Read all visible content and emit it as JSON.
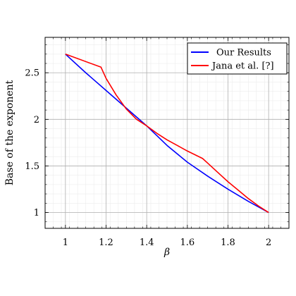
{
  "chart_data": {
    "type": "line",
    "xlabel": "β",
    "ylabel": "Base of the exponent",
    "xlim": [
      0.9,
      2.1
    ],
    "ylim": [
      0.83,
      2.88
    ],
    "xticks": [
      1,
      1.2,
      1.4,
      1.6,
      1.8,
      2
    ],
    "xtick_labels": [
      "1",
      "1.2",
      "1.4",
      "1.6",
      "1.8",
      "2"
    ],
    "yticks": [
      1,
      1.5,
      2,
      2.5
    ],
    "ytick_labels": [
      "1",
      "1.5",
      "2",
      "2.5"
    ],
    "major_grid": true,
    "minor_grid": true,
    "legend_position": "top-right",
    "series": [
      {
        "name": "Our Results",
        "color": "#0000ff",
        "x": [
          1.0,
          1.1,
          1.2,
          1.3,
          1.4,
          1.5,
          1.6,
          1.7,
          1.8,
          1.9,
          2.0
        ],
        "y": [
          2.7,
          2.5,
          2.31,
          2.12,
          1.93,
          1.72,
          1.54,
          1.39,
          1.25,
          1.12,
          1.0
        ]
      },
      {
        "name": "Jana et al. [?]",
        "color": "#ff0000",
        "x": [
          1.0,
          1.175,
          1.2,
          1.25,
          1.3,
          1.35,
          1.4,
          1.45,
          1.5,
          1.55,
          1.6,
          1.675,
          1.7,
          1.75,
          1.8,
          1.85,
          1.9,
          1.95,
          2.0
        ],
        "y": [
          2.7,
          2.56,
          2.44,
          2.26,
          2.11,
          2.0,
          1.93,
          1.85,
          1.78,
          1.72,
          1.66,
          1.58,
          1.53,
          1.43,
          1.33,
          1.24,
          1.15,
          1.07,
          1.0
        ]
      }
    ]
  }
}
